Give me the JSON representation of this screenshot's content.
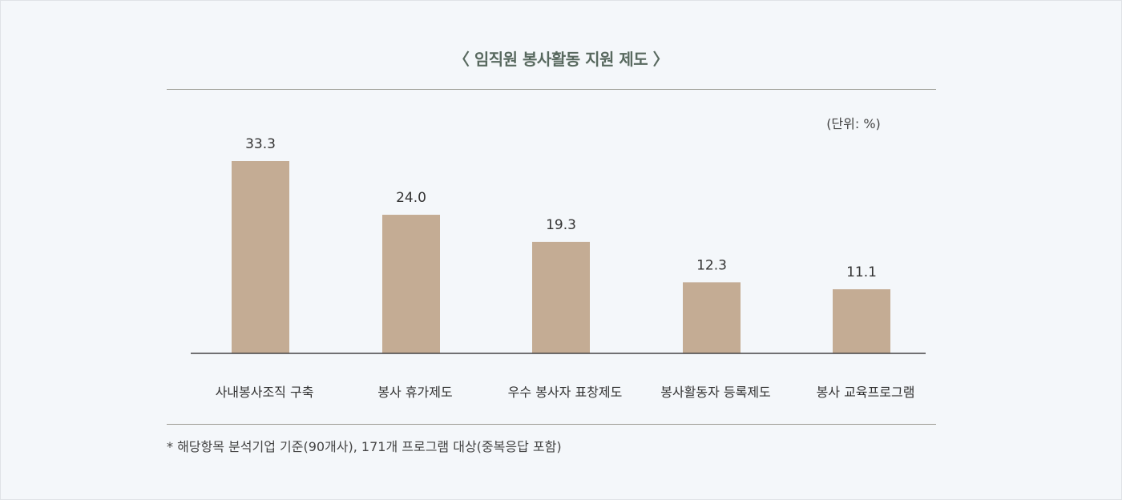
{
  "chart_data": {
    "type": "bar",
    "title": "〈 임직원 봉사활동 지원 제도 〉",
    "unit": "(단위: %)",
    "categories": [
      "사내봉사조직 구축",
      "봉사 휴가제도",
      "우수 봉사자 표창제도",
      "봉사활동자 등록제도",
      "봉사 교육프로그램"
    ],
    "values": [
      33.3,
      24.0,
      19.3,
      12.3,
      11.1
    ],
    "value_labels": [
      "33.3",
      "24.0",
      "19.3",
      "12.3",
      "11.1"
    ],
    "ylim": [
      0,
      33.3
    ],
    "bar_color": "#c4ac94",
    "grid": false
  },
  "note": "* 해당항목 분석기업 기준(90개사), 171개 프로그램 대상(중복응답 포함)"
}
